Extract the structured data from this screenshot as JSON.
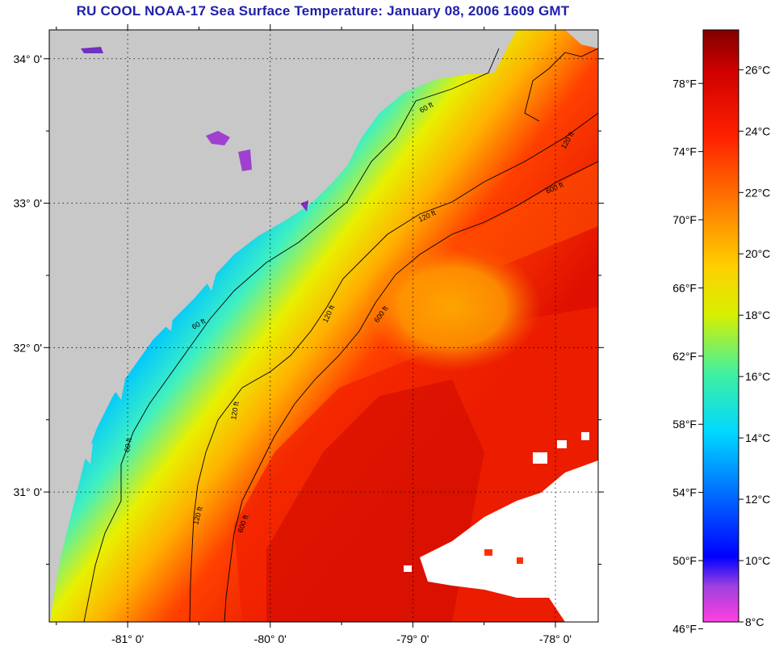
{
  "title": "RU COOL  NOAA-17  Sea Surface Temperature:  January 08, 2006 1609 GMT",
  "map": {
    "lat_ticks": [
      {
        "label": "34° 0'",
        "value": 34
      },
      {
        "label": "33° 0'",
        "value": 33
      },
      {
        "label": "32° 0'",
        "value": 32
      },
      {
        "label": "31° 0'",
        "value": 31
      }
    ],
    "lon_ticks": [
      {
        "label": "-81° 0'",
        "value": -81
      },
      {
        "label": "-80° 0'",
        "value": -80
      },
      {
        "label": "-79° 0'",
        "value": -79
      },
      {
        "label": "-78° 0'",
        "value": -78
      }
    ],
    "lat_range": [
      30.1,
      34.2
    ],
    "lon_range": [
      -81.55,
      -77.7
    ],
    "contour_labels": [
      "60 ft",
      "120 ft",
      "600 ft"
    ],
    "land_color": "#c8c8c8",
    "cloud_color": "#ffffff"
  },
  "colorbar": {
    "fahrenheit": [
      "78°F",
      "74°F",
      "70°F",
      "66°F",
      "62°F",
      "58°F",
      "54°F",
      "50°F",
      "46°F"
    ],
    "celsius": [
      "26°C",
      "24°C",
      "22°C",
      "20°C",
      "18°C",
      "16°C",
      "14°C",
      "12°C",
      "10°C",
      "8°C"
    ],
    "range_c": [
      8,
      27.3
    ]
  }
}
